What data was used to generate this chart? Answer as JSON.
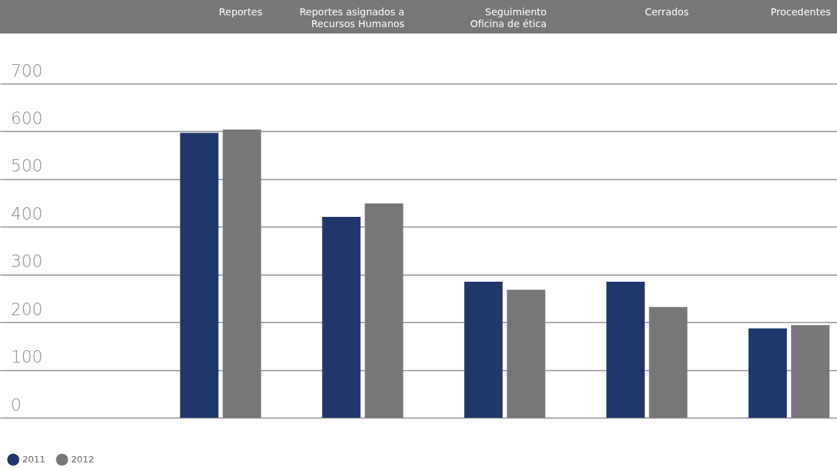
{
  "chart_data": {
    "type": "bar",
    "categories": [
      "Reportes",
      "Reportes asignados a\nRecursos Humanos",
      "Seguimiento\nOficina de ética",
      "Cerrados",
      "Procedentes"
    ],
    "series": [
      {
        "name": "2011",
        "color": "#1f376b",
        "values": [
          597,
          421,
          285,
          285,
          187
        ]
      },
      {
        "name": "2012",
        "color": "#77777a",
        "values": [
          604,
          449,
          268,
          232,
          194
        ]
      }
    ],
    "ylim": [
      0,
      700
    ],
    "yticks": [
      0,
      100,
      200,
      300,
      400,
      500,
      600,
      700
    ],
    "grid": "y",
    "legend": "bottom left"
  }
}
